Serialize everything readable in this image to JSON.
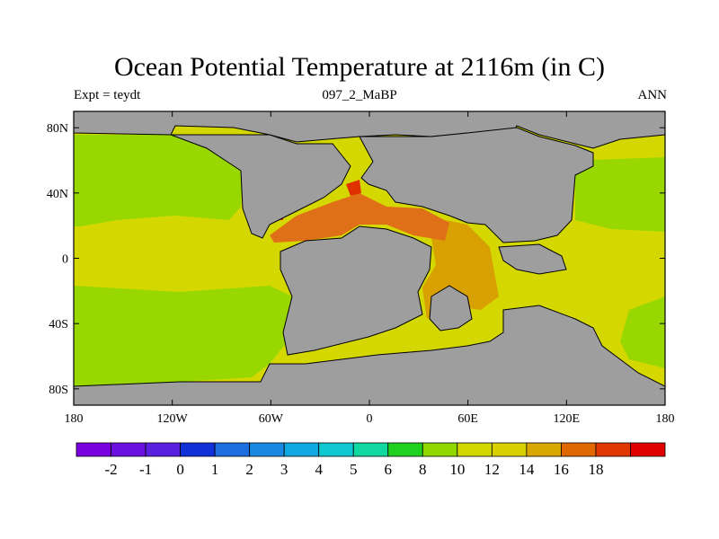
{
  "title": "Ocean Potential Temperature at 2116m (in C)",
  "left_string": "Expt = teydt",
  "center_string": "097_2_MaBP",
  "right_string": "ANN",
  "map": {
    "lon_range": [
      -180,
      180
    ],
    "lat_range": [
      -90,
      90
    ],
    "x_ticks": [
      {
        "value": -180,
        "label": "180"
      },
      {
        "value": -120,
        "label": "120W"
      },
      {
        "value": -60,
        "label": "60W"
      },
      {
        "value": 0,
        "label": "0"
      },
      {
        "value": 60,
        "label": "60E"
      },
      {
        "value": 120,
        "label": "120E"
      },
      {
        "value": 180,
        "label": "180"
      }
    ],
    "y_ticks": [
      {
        "value": 80,
        "label": "80N"
      },
      {
        "value": 40,
        "label": "40N"
      },
      {
        "value": 0,
        "label": "0"
      },
      {
        "value": -40,
        "label": "40S"
      },
      {
        "value": -80,
        "label": "80S"
      }
    ],
    "land_color": "#9e9e9e",
    "coastline_color": "#000000"
  },
  "colorbar": {
    "colors": [
      "#7a00e0",
      "#6a10e0",
      "#5a20e0",
      "#1030d8",
      "#1e6ee0",
      "#1888e0",
      "#10a8e0",
      "#10c8d0",
      "#10d8a0",
      "#20d020",
      "#90d800",
      "#d0d800",
      "#d8d000",
      "#d8a800",
      "#e06800",
      "#e03800",
      "#e00000"
    ],
    "labels": [
      "-2",
      "-1",
      "0",
      "1",
      "2",
      "3",
      "4",
      "5",
      "6",
      "8",
      "10",
      "12",
      "14",
      "16",
      "18"
    ]
  }
}
